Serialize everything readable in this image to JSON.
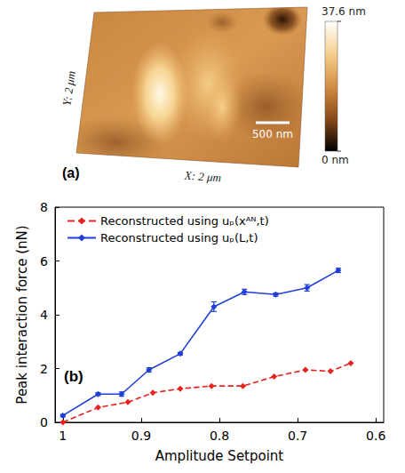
{
  "panel_a": {
    "label": "(a)",
    "x_label": "X: 2 μm",
    "y_label": "Y: 2 μm",
    "scale_bar": "500 nm",
    "colorbar": {
      "range": [
        0,
        37.6
      ],
      "ticks": [
        {
          "value": 0,
          "label": "0 nm"
        },
        {
          "value": 37.6,
          "label": "37.6 nm"
        }
      ]
    }
  },
  "chart_data": {
    "type": "line",
    "panel_label": "(b)",
    "x_label": "Amplitude Setpoint",
    "y_label": "Peak interaction force (nN)",
    "xlim": [
      1.01,
      0.59
    ],
    "xticks": [
      1,
      0.9,
      0.8,
      0.7,
      0.6
    ],
    "ylim": [
      0,
      8
    ],
    "yticks": [
      0,
      2,
      4,
      6,
      8
    ],
    "grid": false,
    "legend": "upper left",
    "series": [
      {
        "name": "Reconstructed using uₚ(xᴬᴺ,t)",
        "color": "#e8231f",
        "marker": "diamond",
        "line_style": "dashed",
        "x": [
          1.0,
          0.955,
          0.917,
          0.885,
          0.85,
          0.81,
          0.77,
          0.73,
          0.69,
          0.658,
          0.632
        ],
        "values": [
          0.0,
          0.55,
          0.75,
          1.1,
          1.25,
          1.35,
          1.35,
          1.7,
          1.95,
          1.9,
          2.2
        ]
      },
      {
        "name": "Reconstructed using uₚ(L,t)",
        "color": "#1f3fd6",
        "marker": "diamond",
        "line_style": "solid",
        "x": [
          1.0,
          0.955,
          0.925,
          0.89,
          0.85,
          0.807,
          0.768,
          0.728,
          0.688,
          0.648
        ],
        "values": [
          0.25,
          1.05,
          1.05,
          1.95,
          2.55,
          4.3,
          4.85,
          4.75,
          5.0,
          5.65
        ],
        "errors": [
          0.05,
          0.05,
          0.08,
          0.08,
          0.05,
          0.18,
          0.1,
          0.06,
          0.12,
          0.08
        ]
      }
    ]
  }
}
